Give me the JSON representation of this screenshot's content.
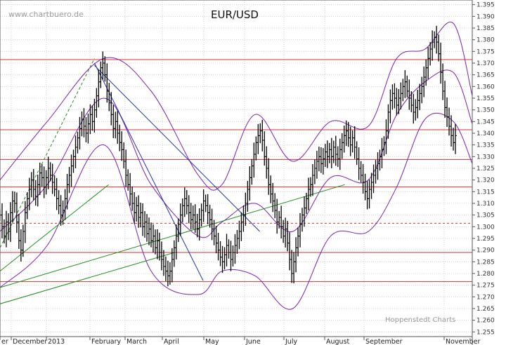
{
  "watermark": "www.chartbuero.de",
  "credit": "Hoppenstedt Charts",
  "chart_data": {
    "type": "ohlc",
    "title": "EUR/USD",
    "ylim": [
      1.253,
      1.397
    ],
    "y_ticks": [
      "1.255",
      "1.260",
      "1.265",
      "1.270",
      "1.275",
      "1.280",
      "1.285",
      "1.290",
      "1.295",
      "1.300",
      "1.305",
      "1.310",
      "1.315",
      "1.320",
      "1.325",
      "1.330",
      "1.335",
      "1.340",
      "1.345",
      "1.350",
      "1.355",
      "1.360",
      "1.365",
      "1.370",
      "1.375",
      "1.380",
      "1.385",
      "1.390",
      "1.395"
    ],
    "x_labels": [
      "er",
      "December",
      "2013",
      "February",
      "March",
      "April",
      "May",
      "June",
      "July",
      "August",
      "September",
      "November"
    ],
    "grid": true,
    "horizontal_levels": [
      1.3715,
      1.3415,
      1.3288,
      1.317,
      1.3015,
      1.289,
      1.2765
    ],
    "series": [
      {
        "values": [
          1.305,
          1.3,
          1.296,
          1.302,
          1.298,
          1.306,
          1.311,
          1.31,
          1.302,
          1.294,
          1.29,
          1.298,
          1.306,
          1.312,
          1.316,
          1.32,
          1.316,
          1.313,
          1.318,
          1.323,
          1.321,
          1.317,
          1.321,
          1.325,
          1.322,
          1.319,
          1.316,
          1.312,
          1.309,
          1.305,
          1.307,
          1.312,
          1.318,
          1.322,
          1.326,
          1.33,
          1.334,
          1.338,
          1.342,
          1.346,
          1.343,
          1.34,
          1.344,
          1.348,
          1.345,
          1.35,
          1.356,
          1.362,
          1.368,
          1.37,
          1.365,
          1.358,
          1.353,
          1.348,
          1.342,
          1.345,
          1.34,
          1.336,
          1.333,
          1.328,
          1.322,
          1.318,
          1.314,
          1.31,
          1.306,
          1.309,
          1.304,
          1.306,
          1.3,
          1.302,
          1.297,
          1.299,
          1.294,
          1.296,
          1.291,
          1.294,
          1.289,
          1.286,
          1.283,
          1.281,
          1.279,
          1.281,
          1.286,
          1.291,
          1.296,
          1.301,
          1.305,
          1.309,
          1.312,
          1.309,
          1.306,
          1.303,
          1.305,
          1.302,
          1.299,
          1.303,
          1.307,
          1.311,
          1.309,
          1.306,
          1.303,
          1.299,
          1.296,
          1.293,
          1.29,
          1.287,
          1.285,
          1.288,
          1.292,
          1.289,
          1.286,
          1.289,
          1.292,
          1.295,
          1.298,
          1.302,
          1.305,
          1.31,
          1.316,
          1.321,
          1.326,
          1.331,
          1.336,
          1.339,
          1.341,
          1.337,
          1.33,
          1.325,
          1.318,
          1.314,
          1.311,
          1.307,
          1.302,
          1.304,
          1.3,
          1.296,
          1.299,
          1.293,
          1.286,
          1.28,
          1.285,
          1.291,
          1.296,
          1.301,
          1.305,
          1.308,
          1.312,
          1.316,
          1.318,
          1.322,
          1.325,
          1.328,
          1.33,
          1.327,
          1.329,
          1.332,
          1.33,
          1.333,
          1.33,
          1.334,
          1.331,
          1.329,
          1.333,
          1.336,
          1.339,
          1.341,
          1.338,
          1.335,
          1.338,
          1.334,
          1.329,
          1.325,
          1.322,
          1.319,
          1.315,
          1.312,
          1.316,
          1.319,
          1.322,
          1.325,
          1.327,
          1.33,
          1.333,
          1.336,
          1.341,
          1.349,
          1.354,
          1.357,
          1.355,
          1.352,
          1.355,
          1.357,
          1.36,
          1.362,
          1.358,
          1.355,
          1.352,
          1.349,
          1.351,
          1.354,
          1.357,
          1.36,
          1.364,
          1.368,
          1.372,
          1.376,
          1.379,
          1.381,
          1.379,
          1.374,
          1.366,
          1.358,
          1.351,
          1.347,
          1.343,
          1.339,
          1.336,
          1.339
        ]
      },
      {
        "type": "line",
        "role": "bollinger-upper",
        "x": [
          0,
          0.1,
          0.22,
          0.32,
          0.42,
          0.47,
          0.54,
          0.62,
          0.7,
          0.78,
          0.84,
          0.9,
          0.96,
          1.0
        ],
        "values": [
          1.32,
          1.345,
          1.372,
          1.358,
          1.322,
          1.318,
          1.348,
          1.328,
          1.345,
          1.343,
          1.372,
          1.376,
          1.387,
          1.356
        ]
      },
      {
        "type": "line",
        "role": "bollinger-middle",
        "x": [
          0,
          0.1,
          0.22,
          0.32,
          0.42,
          0.47,
          0.54,
          0.62,
          0.7,
          0.78,
          0.84,
          0.9,
          0.96,
          1.0
        ],
        "values": [
          1.298,
          1.318,
          1.355,
          1.318,
          1.296,
          1.302,
          1.31,
          1.298,
          1.321,
          1.32,
          1.348,
          1.362,
          1.366,
          1.344
        ]
      },
      {
        "type": "line",
        "role": "bollinger-lower",
        "x": [
          0,
          0.1,
          0.22,
          0.32,
          0.42,
          0.47,
          0.54,
          0.62,
          0.7,
          0.78,
          0.84,
          0.9,
          0.96,
          1.0
        ],
        "values": [
          1.274,
          1.292,
          1.335,
          1.281,
          1.271,
          1.281,
          1.279,
          1.265,
          1.296,
          1.298,
          1.317,
          1.346,
          1.345,
          1.327
        ]
      },
      {
        "type": "line",
        "role": "trendline",
        "x": [
          0.0,
          0.73
        ],
        "values": [
          1.274,
          1.318
        ]
      },
      {
        "type": "line",
        "role": "trendline",
        "x": [
          0.0,
          0.37
        ],
        "values": [
          1.267,
          1.289
        ]
      },
      {
        "type": "line",
        "role": "trendline",
        "x": [
          0.2,
          0.55
        ],
        "values": [
          1.369,
          1.298
        ]
      },
      {
        "type": "line",
        "role": "trendline",
        "x": [
          0.2,
          0.43
        ],
        "values": [
          1.37,
          1.277
        ]
      },
      {
        "type": "line",
        "role": "trendline",
        "x": [
          0.0,
          0.23
        ],
        "values": [
          1.281,
          1.318
        ]
      },
      {
        "type": "line",
        "role": "trendline",
        "x": [
          0.0,
          0.2
        ],
        "values": [
          1.291,
          1.372
        ]
      }
    ]
  },
  "colors": {
    "level": "#d93030",
    "level_dashed": "#d93030",
    "band": "#7d20b0",
    "green": "#1f8f1f",
    "blue": "#2233aa",
    "candle": "#000000",
    "grid": "#c8c8c8"
  }
}
